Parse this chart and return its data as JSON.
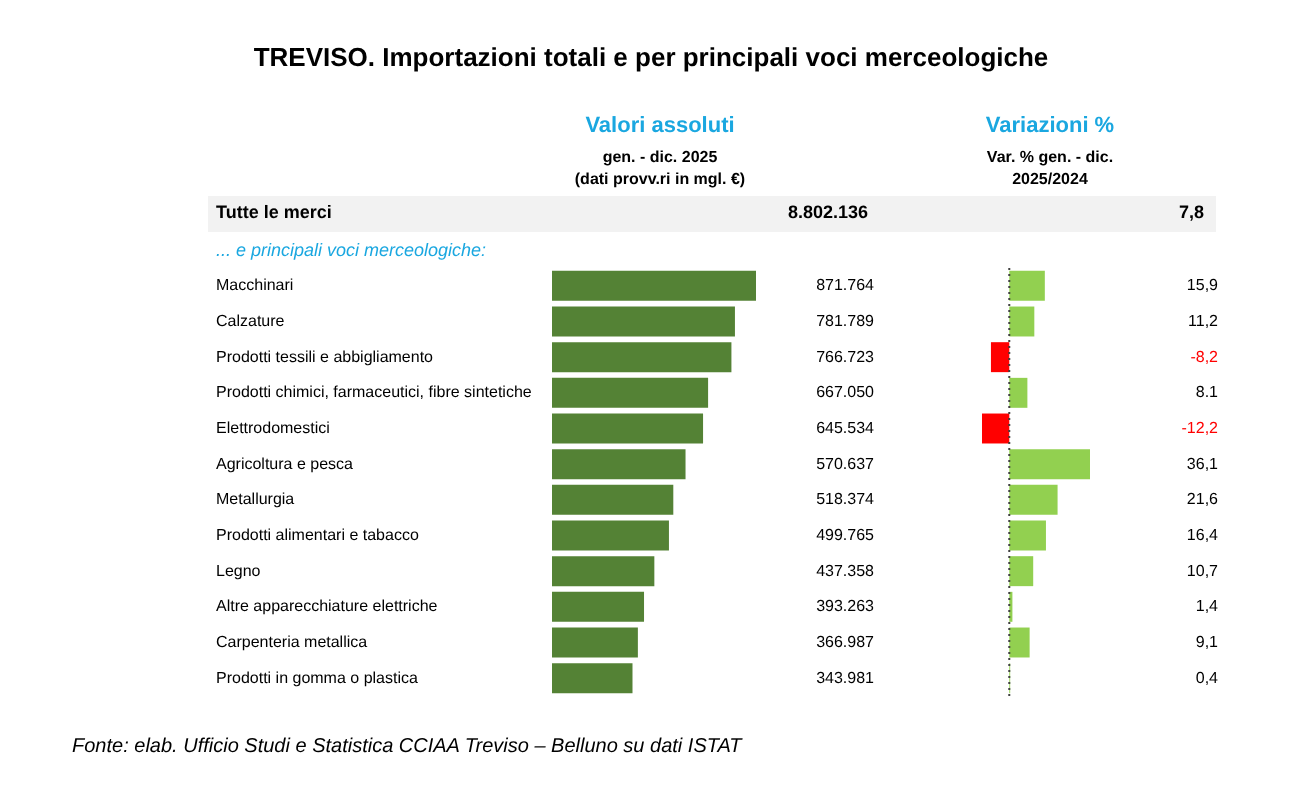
{
  "chart_data": [
    {
      "type": "bar",
      "orientation": "horizontal",
      "title": "TREVISO. Importazioni totali e per principali voci merceologiche",
      "subtitle": "Valori assoluti",
      "xlabel": "gen. - dic. 2025\n(dati provv.ri in mgl. €)",
      "annotations": [
        "Tutte le merci",
        "8.802.136",
        "... e principali voci merceologiche:",
        "Fonte: elab. Ufficio Studi e Statistica CCIAA Treviso – Belluno su dati ISTAT"
      ],
      "categories": [
        "Macchinari",
        "Calzature",
        "Prodotti tessili e abbigliamento",
        "Prodotti chimici, farmaceutici, fibre sintetiche",
        "Elettrodomestici",
        "Agricoltura e pesca",
        "Metallurgia",
        "Prodotti alimentari e tabacco",
        "Legno",
        "Altre apparecchiature elettriche",
        "Carpenteria metallica",
        "Prodotti in gomma o plastica"
      ],
      "values": [
        871764,
        781789,
        766723,
        667050,
        645534,
        570637,
        518374,
        499765,
        437358,
        393263,
        366987,
        343981
      ],
      "color": "#548235",
      "value_labels": [
        "871.764",
        "781.789",
        "766.723",
        "667.050",
        "645.534",
        "570.637",
        "518.374",
        "499.765",
        "437.358",
        "393.263",
        "366.987",
        "343.981"
      ]
    },
    {
      "type": "bar",
      "orientation": "horizontal",
      "title": "Variazioni %",
      "xlabel": "Var. % gen. - dic.\n2025/2024",
      "annotations": [
        "7,8"
      ],
      "categories": [
        null,
        null,
        null,
        null,
        null,
        null,
        null,
        null,
        null,
        null,
        null,
        null
      ],
      "values": [
        15.9,
        11.2,
        -8.2,
        8.1,
        -12.2,
        36.1,
        21.6,
        16.4,
        10.7,
        1.4,
        9.1,
        0.4
      ],
      "colors": [
        "#92d050",
        "#92d050",
        "#ff0000",
        "#92d050",
        "#ff0000",
        "#92d050",
        "#92d050",
        "#92d050",
        "#92d050",
        "#92d050",
        "#92d050",
        "#92d050"
      ],
      "value_labels": [
        "15,9",
        "11,2",
        "-8,2",
        "8.1",
        "-12,2",
        "36,1",
        "21,6",
        "16,4",
        "10,7",
        "1,4",
        "9,1",
        "0,4"
      ],
      "ref_lines": [
        {
          "axis": "x",
          "value": 0,
          "line_style": "dotted",
          "color": "#404040"
        }
      ]
    }
  ]
}
